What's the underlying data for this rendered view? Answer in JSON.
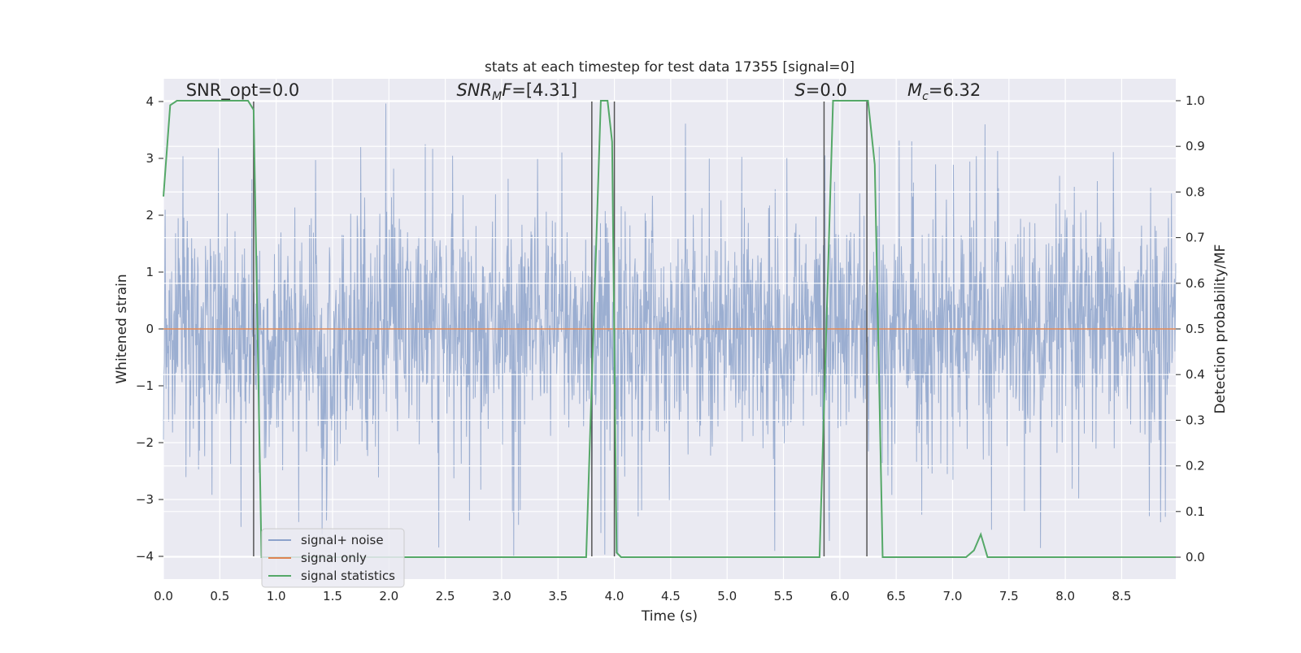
{
  "chart_data": {
    "type": "line",
    "title": "stats at each timestep for test data 17355 [signal=0]",
    "xlabel": "Time (s)",
    "ylabel": "Whitened strain",
    "y2label": "Detection probability/MF",
    "xlim": [
      0.0,
      8.98
    ],
    "ylim": [
      -4.4,
      4.4
    ],
    "y2lim": [
      -0.048,
      1.048
    ],
    "x_ticks": [
      0.0,
      0.5,
      1.0,
      1.5,
      2.0,
      2.5,
      3.0,
      3.5,
      4.0,
      4.5,
      5.0,
      5.5,
      6.0,
      6.5,
      7.0,
      7.5,
      8.0,
      8.5
    ],
    "x_tick_labels": [
      "0.0",
      "0.5",
      "1.0",
      "1.5",
      "2.0",
      "2.5",
      "3.0",
      "3.5",
      "4.0",
      "4.5",
      "5.0",
      "5.5",
      "6.0",
      "6.5",
      "7.0",
      "7.5",
      "8.0",
      "8.5"
    ],
    "y_ticks": [
      -4,
      -3,
      -2,
      -1,
      0,
      1,
      2,
      3,
      4
    ],
    "y_tick_labels": [
      "−4",
      "−3",
      "−2",
      "−1",
      "0",
      "1",
      "2",
      "3",
      "4"
    ],
    "y2_ticks": [
      0.0,
      0.1,
      0.2,
      0.3,
      0.4,
      0.5,
      0.6,
      0.7,
      0.8,
      0.9,
      1.0
    ],
    "y2_tick_labels": [
      "0.0",
      "0.1",
      "0.2",
      "0.3",
      "0.4",
      "0.5",
      "0.6",
      "0.7",
      "0.8",
      "0.9",
      "1.0"
    ],
    "grid": true,
    "legend_position": "lower-left",
    "series": [
      {
        "name": "signal+ noise",
        "color": "#4c72b0",
        "kind": "noise",
        "sample_rate_hz": 2048,
        "typical_amplitude": 1.6,
        "peak_amplitude": 4.0
      },
      {
        "name": "signal only",
        "color": "#dd8452",
        "x": [
          0.0,
          8.98
        ],
        "y": [
          0.0,
          0.0
        ]
      },
      {
        "name": "signal statistics",
        "color": "#55a868",
        "axis": "right",
        "x": [
          0.0,
          0.06,
          0.12,
          0.25,
          0.5,
          0.75,
          0.8,
          0.87,
          0.9,
          1.0,
          2.0,
          3.0,
          3.75,
          3.88,
          3.94,
          3.98,
          4.02,
          4.06,
          4.12,
          5.0,
          5.82,
          5.94,
          6.0,
          6.25,
          6.31,
          6.38,
          7.0,
          7.12,
          7.19,
          7.25,
          7.31,
          8.0,
          8.98
        ],
        "y": [
          0.79,
          0.99,
          1.0,
          1.0,
          1.0,
          1.0,
          0.98,
          0.0,
          0.0,
          0.0,
          0.0,
          0.0,
          0.0,
          1.0,
          1.0,
          0.91,
          0.01,
          0.0,
          0.0,
          0.0,
          0.0,
          1.0,
          1.0,
          1.0,
          0.86,
          0.0,
          0.0,
          0.0,
          0.015,
          0.05,
          0.0,
          0.0,
          0.0
        ]
      }
    ],
    "vertical_markers": [
      0.8,
      3.8,
      4.0,
      5.86,
      6.24
    ],
    "annotations": [
      {
        "text": "SNR_opt=0.0",
        "x": 0.2,
        "y": 4.1
      },
      {
        "text": "SNR_MF=[4.31]",
        "x": 2.6,
        "y": 4.1
      },
      {
        "text": "S=0.0",
        "x": 5.6,
        "y": 4.1
      },
      {
        "text": "M_c=6.32",
        "x": 6.6,
        "y": 4.1
      }
    ]
  }
}
